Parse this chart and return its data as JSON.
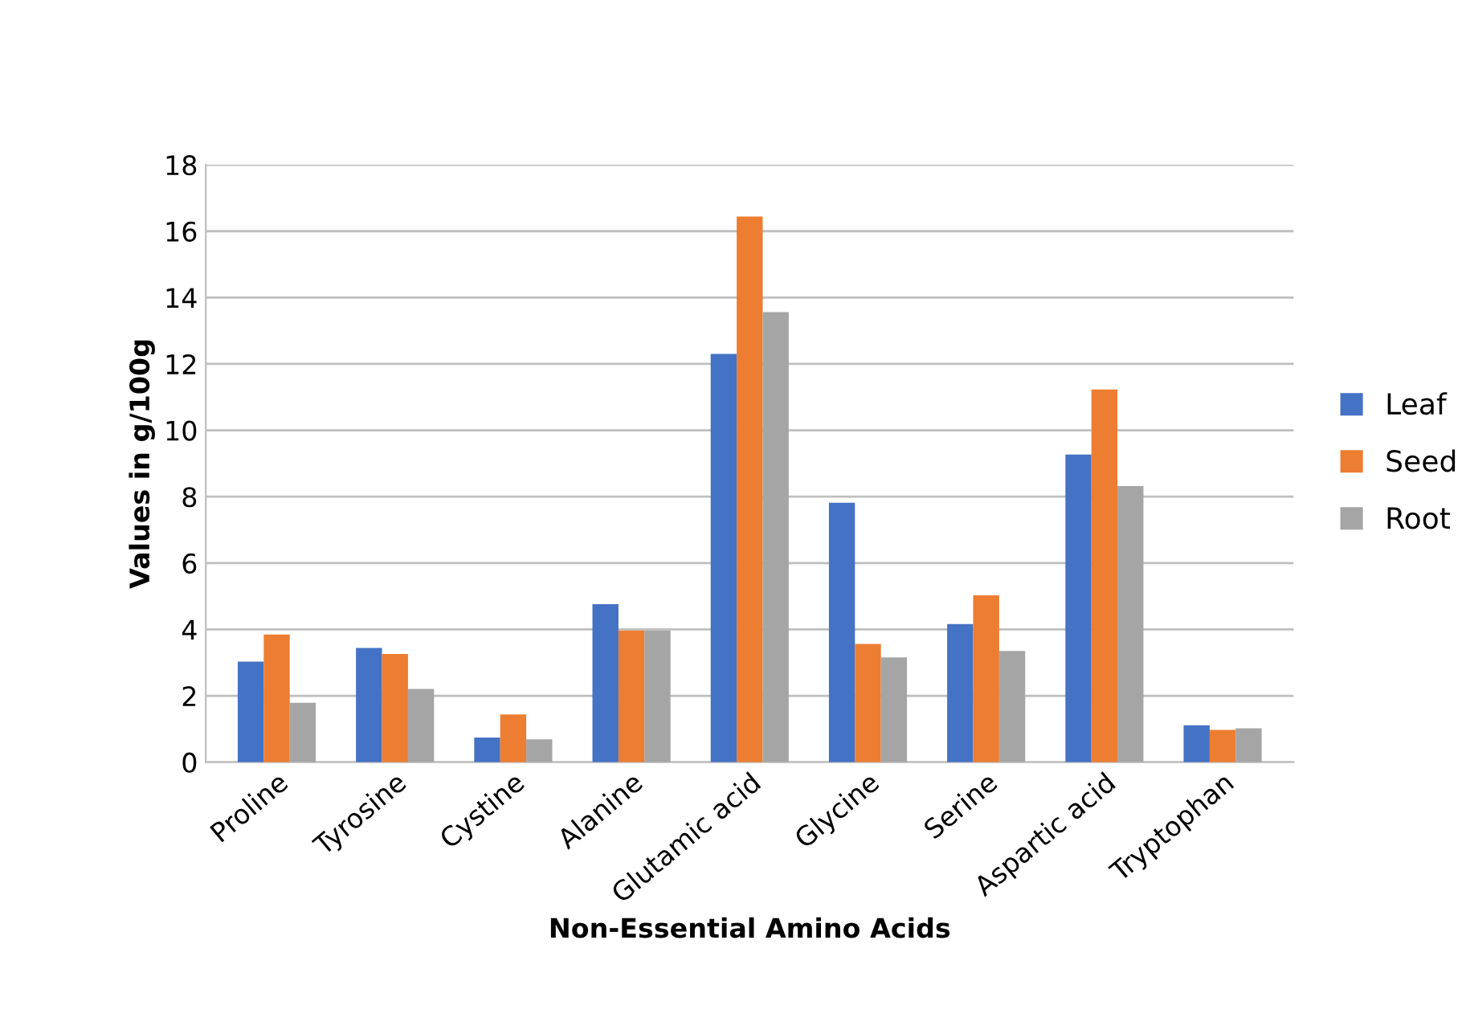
{
  "chart_data": {
    "type": "bar",
    "xlabel": "Non-Essential Amino Acids",
    "ylabel": "Values in g/100g",
    "categories": [
      "Proline",
      "Tyrosine",
      "Cystine",
      "Alanine",
      "Glutamic acid",
      "Glycine",
      "Serine",
      "Aspartic acid",
      "Tryptophan"
    ],
    "series": [
      {
        "name": "Leaf",
        "color": "#4472c4",
        "values": [
          3.03,
          3.44,
          0.74,
          4.76,
          12.3,
          7.82,
          4.16,
          9.27,
          1.11
        ]
      },
      {
        "name": "Seed",
        "color": "#ed7d31",
        "values": [
          3.85,
          3.26,
          1.44,
          3.97,
          16.44,
          3.56,
          5.03,
          11.23,
          0.97
        ]
      },
      {
        "name": "Root",
        "color": "#a5a5a5",
        "values": [
          1.79,
          2.21,
          0.69,
          3.97,
          13.56,
          3.16,
          3.35,
          8.32,
          1.02
        ]
      }
    ],
    "ylim": [
      0,
      18
    ],
    "yticks": [
      0,
      2,
      4,
      6,
      8,
      10,
      12,
      14,
      16,
      18
    ],
    "grid": "y",
    "legend": "right"
  }
}
